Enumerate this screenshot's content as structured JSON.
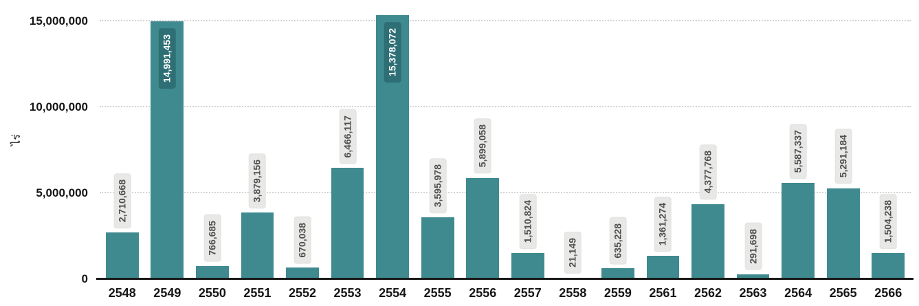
{
  "chart_data": {
    "type": "bar",
    "title": "",
    "xlabel": "",
    "ylabel": "ไร่",
    "ylim": [
      0,
      16000000
    ],
    "grid": "horizontal-dotted",
    "legend": "none",
    "yticks": [
      0,
      5000000,
      10000000,
      15000000
    ],
    "ytick_labels": [
      "0",
      "5,000,000",
      "10,000,000",
      "15,000,000"
    ],
    "categories": [
      "2548",
      "2549",
      "2550",
      "2551",
      "2552",
      "2553",
      "2554",
      "2555",
      "2556",
      "2557",
      "2558",
      "2559",
      "2561",
      "2562",
      "2563",
      "2564",
      "2565",
      "2566"
    ],
    "values": [
      2710668,
      14991453,
      766685,
      3879156,
      670038,
      6466117,
      15378072,
      3595978,
      5899058,
      1510824,
      21149,
      635228,
      1361274,
      4377768,
      291698,
      5587337,
      5291184,
      1504238
    ],
    "value_labels": [
      "2,710,668",
      "14,991,453",
      "766,685",
      "3,879,156",
      "670,038",
      "6,466,117",
      "15,378,072",
      "3,595,978",
      "5,899,058",
      "1,510,824",
      "21,149",
      "635,228",
      "1,361,274",
      "4,377,768",
      "291,698",
      "5,587,337",
      "5,291,184",
      "1,504,238"
    ],
    "bar_color": "#3e8a8f",
    "label_inside_threshold": 14000000,
    "colors": {
      "axis_text": "#161616",
      "gridline": "#d4d4d4",
      "label_box_bg": "#e8e8e6",
      "label_box_text": "#4f4f4f",
      "inside_label_bg": "#2e6f75",
      "inside_label_text": "#ffffff",
      "axis_line": "#1a1a1a"
    }
  }
}
